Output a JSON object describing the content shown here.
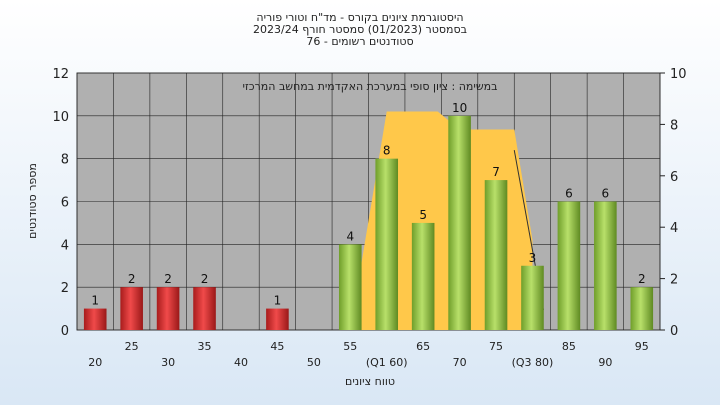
{
  "titles": {
    "line1": "היסטוגרמת ציונים בקורס - מד\"ח וטורי פוריה",
    "line2": "בסמסטר  (01/2023)  סמסטר חורף 2023/24",
    "line3": "סטודנטים רשומים - 76"
  },
  "chart_data": {
    "type": "bar",
    "subtitle": "במשימה : ציון סופי במערכת האקדמית במחשב המרכזי",
    "xlabel": "טווח ציונים",
    "ylabel": "מספר סטודנטים",
    "ylim": [
      0,
      12
    ],
    "y2lim": [
      0,
      10
    ],
    "yticks": [
      0,
      2,
      4,
      6,
      8,
      10,
      12
    ],
    "y2ticks": [
      0,
      2,
      4,
      6,
      8,
      10
    ],
    "grid": true,
    "categories": [
      "20",
      "25",
      "30",
      "35",
      "40",
      "45",
      "50",
      "55",
      "60",
      "65",
      "70",
      "75",
      "80",
      "85",
      "90",
      "95"
    ],
    "tick_labels": [
      "20",
      "25",
      "30",
      "35",
      "40",
      "45",
      "50",
      "55",
      "(Q1 60)",
      "65",
      "70",
      "75",
      "(Q3 80)",
      "85",
      "90",
      "95"
    ],
    "values": [
      1,
      2,
      2,
      2,
      0,
      1,
      0,
      4,
      8,
      5,
      10,
      7,
      3,
      6,
      6,
      2
    ],
    "colors": {
      "fail": "#d83030",
      "pass": "#8cc63f",
      "box": "#ffc84a",
      "plot_bg": "#b0b0b0"
    },
    "boxplot": {
      "q1": 60,
      "q3": 80,
      "median": 70,
      "min": 55,
      "max": 100
    }
  }
}
